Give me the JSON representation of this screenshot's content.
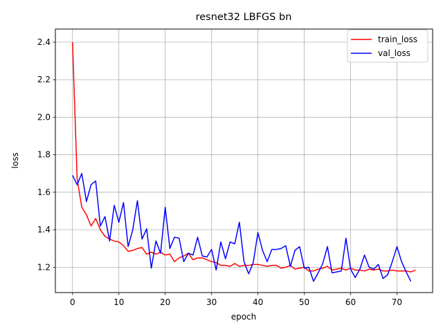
{
  "chart_data": {
    "type": "line",
    "title": "resnet32 LBFGS bn",
    "xlabel": "epoch",
    "ylabel": "loss",
    "xlim": [
      -3.7,
      77.7
    ],
    "ylim": [
      1.065,
      2.47
    ],
    "xticks": [
      0,
      10,
      20,
      30,
      40,
      50,
      60,
      70
    ],
    "yticks": [
      1.2,
      1.4,
      1.6,
      1.8,
      2.0,
      2.2,
      2.4
    ],
    "ytick_labels": [
      "1.2",
      "1.4",
      "1.6",
      "1.8",
      "2.0",
      "2.2",
      "2.4"
    ],
    "grid": true,
    "legend_position": "upper right",
    "series": [
      {
        "name": "train_loss",
        "color": "#ff0000",
        "x": [
          0,
          1,
          2,
          3,
          4,
          5,
          6,
          7,
          8,
          9,
          10,
          11,
          12,
          13,
          14,
          15,
          16,
          17,
          18,
          19,
          20,
          21,
          22,
          23,
          24,
          25,
          26,
          27,
          28,
          29,
          30,
          31,
          32,
          33,
          34,
          35,
          36,
          37,
          38,
          39,
          40,
          41,
          42,
          43,
          44,
          45,
          46,
          47,
          48,
          49,
          50,
          51,
          52,
          53,
          54,
          55,
          56,
          57,
          58,
          59,
          60,
          61,
          62,
          63,
          64,
          65,
          66,
          67,
          68,
          69,
          70,
          71,
          72,
          73,
          74
        ],
        "y": [
          2.4,
          1.67,
          1.52,
          1.48,
          1.42,
          1.46,
          1.4,
          1.365,
          1.35,
          1.34,
          1.335,
          1.315,
          1.285,
          1.29,
          1.3,
          1.305,
          1.27,
          1.28,
          1.27,
          1.28,
          1.265,
          1.27,
          1.23,
          1.25,
          1.26,
          1.275,
          1.24,
          1.25,
          1.25,
          1.24,
          1.23,
          1.225,
          1.21,
          1.21,
          1.205,
          1.22,
          1.205,
          1.21,
          1.21,
          1.215,
          1.215,
          1.21,
          1.205,
          1.21,
          1.21,
          1.195,
          1.2,
          1.21,
          1.19,
          1.195,
          1.2,
          1.18,
          1.18,
          1.19,
          1.195,
          1.205,
          1.185,
          1.19,
          1.195,
          1.185,
          1.195,
          1.185,
          1.185,
          1.18,
          1.19,
          1.185,
          1.19,
          1.18,
          1.18,
          1.185,
          1.18,
          1.18,
          1.18,
          1.175,
          1.185
        ]
      },
      {
        "name": "val_loss",
        "color": "#0000ff",
        "x": [
          0,
          1,
          2,
          3,
          4,
          5,
          6,
          7,
          8,
          9,
          10,
          11,
          12,
          13,
          14,
          15,
          16,
          17,
          18,
          19,
          20,
          21,
          22,
          23,
          24,
          25,
          26,
          27,
          28,
          29,
          30,
          31,
          32,
          33,
          34,
          35,
          36,
          37,
          38,
          39,
          40,
          41,
          42,
          43,
          44,
          45,
          46,
          47,
          48,
          49,
          50,
          51,
          52,
          53,
          54,
          55,
          56,
          57,
          58,
          59,
          60,
          61,
          62,
          63,
          64,
          65,
          66,
          67,
          68,
          69,
          70,
          71,
          72,
          73
        ],
        "y": [
          1.69,
          1.64,
          1.7,
          1.55,
          1.64,
          1.66,
          1.42,
          1.47,
          1.34,
          1.53,
          1.44,
          1.545,
          1.31,
          1.4,
          1.555,
          1.35,
          1.405,
          1.195,
          1.34,
          1.275,
          1.52,
          1.3,
          1.36,
          1.355,
          1.23,
          1.275,
          1.265,
          1.36,
          1.26,
          1.255,
          1.295,
          1.185,
          1.335,
          1.245,
          1.335,
          1.325,
          1.44,
          1.23,
          1.165,
          1.225,
          1.385,
          1.29,
          1.23,
          1.295,
          1.295,
          1.3,
          1.315,
          1.205,
          1.29,
          1.31,
          1.195,
          1.2,
          1.125,
          1.17,
          1.22,
          1.31,
          1.17,
          1.175,
          1.18,
          1.355,
          1.19,
          1.145,
          1.19,
          1.265,
          1.2,
          1.19,
          1.215,
          1.14,
          1.16,
          1.23,
          1.31,
          1.23,
          1.175,
          1.125
        ]
      }
    ]
  }
}
